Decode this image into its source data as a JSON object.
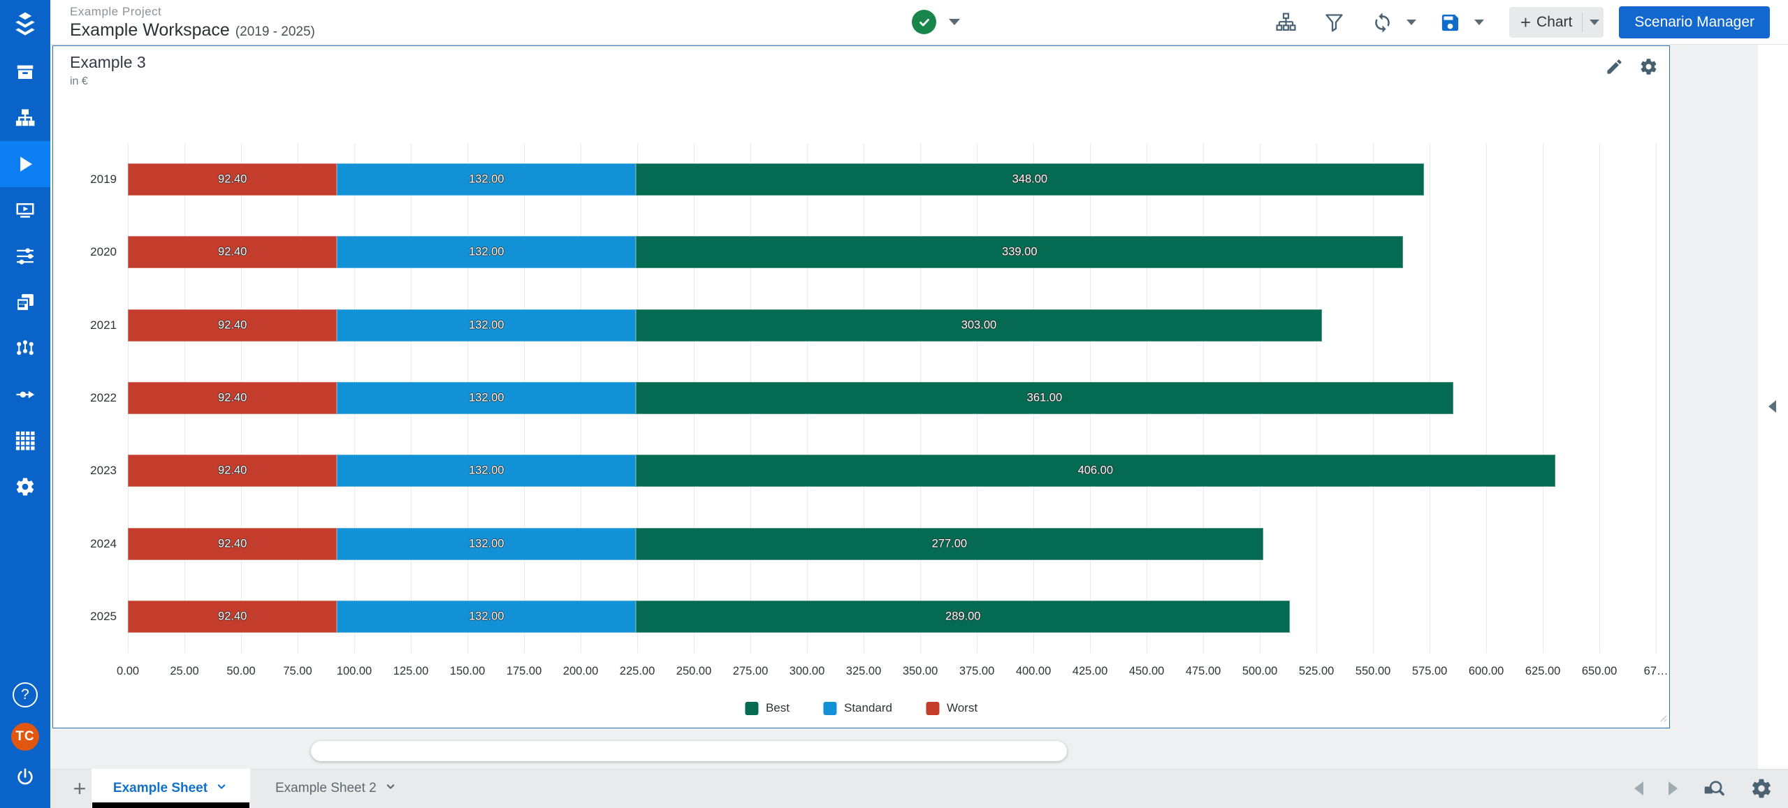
{
  "header": {
    "project_label": "Example Project",
    "workspace_title": "Example Workspace",
    "workspace_period": "(2019 - 2025)",
    "status": {
      "icon": "check-circle",
      "color": "#18854b"
    },
    "toolbar": {
      "icons": [
        "hierarchy-icon",
        "filter-icon",
        "refresh-icon",
        "save-icon"
      ],
      "chart_button_plus": "+",
      "chart_button_label": "Chart",
      "scenario_manager_label": "Scenario Manager"
    }
  },
  "sidebar": {
    "color": "#0a63c9",
    "active_color": "#0d7ff2",
    "items": [
      "archive",
      "model-hierarchy",
      "simulation",
      "presentation",
      "assumptions",
      "reports",
      "dependencies",
      "data-flow",
      "data-grid",
      "settings"
    ],
    "active_item": "simulation",
    "help_label": "?",
    "avatar_initials": "TC"
  },
  "chart_card": {
    "title": "Example 3",
    "subtitle": "in €"
  },
  "chart_data": {
    "type": "bar",
    "orientation": "horizontal",
    "stacked": true,
    "title": "Example 3",
    "unit": "in €",
    "categories": [
      "2019",
      "2020",
      "2021",
      "2022",
      "2023",
      "2024",
      "2025"
    ],
    "series": [
      {
        "name": "Worst",
        "color": "#c43c2b",
        "values": [
          92.4,
          92.4,
          92.4,
          92.4,
          92.4,
          92.4,
          92.4
        ],
        "labels": [
          "92.40",
          "92.40",
          "92.40",
          "92.40",
          "92.40",
          "92.40",
          "92.40"
        ]
      },
      {
        "name": "Standard",
        "color": "#1391d6",
        "values": [
          132,
          132,
          132,
          132,
          132,
          132,
          132
        ],
        "labels": [
          "132.00",
          "132.00",
          "132.00",
          "132.00",
          "132.00",
          "132.00",
          "132.00"
        ]
      },
      {
        "name": "Best",
        "color": "#046a51",
        "values": [
          348,
          339,
          303,
          361,
          406,
          277,
          289
        ],
        "labels": [
          "348.00",
          "339.00",
          "303.00",
          "361.00",
          "406.00",
          "277.00",
          "289.00"
        ]
      }
    ],
    "x_ticks": {
      "values": [
        0,
        25,
        50,
        75,
        100,
        125,
        150,
        175,
        200,
        225,
        250,
        275,
        300,
        325,
        350,
        375,
        400,
        425,
        450,
        475,
        500,
        525,
        550,
        575,
        600,
        625,
        650,
        675
      ],
      "labels": [
        "0.00",
        "25.00",
        "50.00",
        "75.00",
        "100.00",
        "125.00",
        "150.00",
        "175.00",
        "200.00",
        "225.00",
        "250.00",
        "275.00",
        "300.00",
        "325.00",
        "350.00",
        "375.00",
        "400.00",
        "425.00",
        "450.00",
        "475.00",
        "500.00",
        "525.00",
        "550.00",
        "575.00",
        "600.00",
        "625.00",
        "650.00",
        "67…"
      ]
    },
    "xlim": [
      0,
      679.6
    ],
    "grid": true,
    "legend": {
      "position": "bottom",
      "entries": [
        {
          "label": "Best",
          "color": "#046a51"
        },
        {
          "label": "Standard",
          "color": "#1391d6"
        },
        {
          "label": "Worst",
          "color": "#c43c2b"
        }
      ]
    }
  },
  "bottom_bar": {
    "add_tab_label": "+",
    "tabs": [
      {
        "label": "Example Sheet",
        "active": true
      },
      {
        "label": "Example Sheet 2",
        "active": false
      }
    ],
    "nav_icons": [
      "prev-arrow-icon",
      "next-arrow-icon",
      "zoom-search-icon",
      "gear-icon"
    ]
  }
}
